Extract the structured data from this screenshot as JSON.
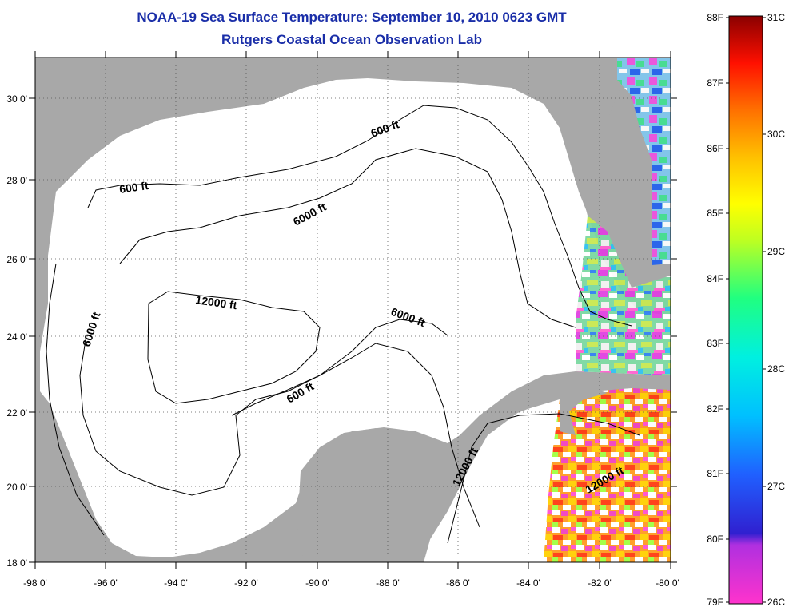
{
  "title": "NOAA-19 Sea Surface Temperature:  September 10, 2010 0623 GMT",
  "subtitle": "Rutgers Coastal Ocean Observation Lab",
  "map": {
    "lon_range": [
      -98,
      -80
    ],
    "lat_range": [
      18,
      31
    ],
    "lon_ticks": [
      "-98 0'",
      "-96 0'",
      "-94 0'",
      "-92 0'",
      "-90 0'",
      "-88 0'",
      "-86 0'",
      "-84 0'",
      "-82 0'",
      "-80 0'"
    ],
    "lat_ticks": [
      "18 0'",
      "20 0'",
      "22 0'",
      "24 0'",
      "26 0'",
      "28 0'",
      "30 0'"
    ],
    "grid": "dotted",
    "contour_labels": [
      "600 ft",
      "600 ft",
      "600 ft",
      "6000 ft",
      "6000 ft",
      "6000 ft",
      "12000 ft",
      "12000 ft",
      "12000 ft"
    ],
    "land_color": "#a8a8a8",
    "water_color": "#ffffff"
  },
  "colorbar": {
    "fahrenheit": [
      "88F",
      "87F",
      "86F",
      "85F",
      "84F",
      "83F",
      "82F",
      "81F",
      "80F",
      "79F"
    ],
    "celsius": [
      "31C",
      "30C",
      "29C",
      "28C",
      "27C",
      "26C"
    ],
    "range_c": [
      26,
      31
    ],
    "range_f": [
      79,
      88
    ]
  }
}
